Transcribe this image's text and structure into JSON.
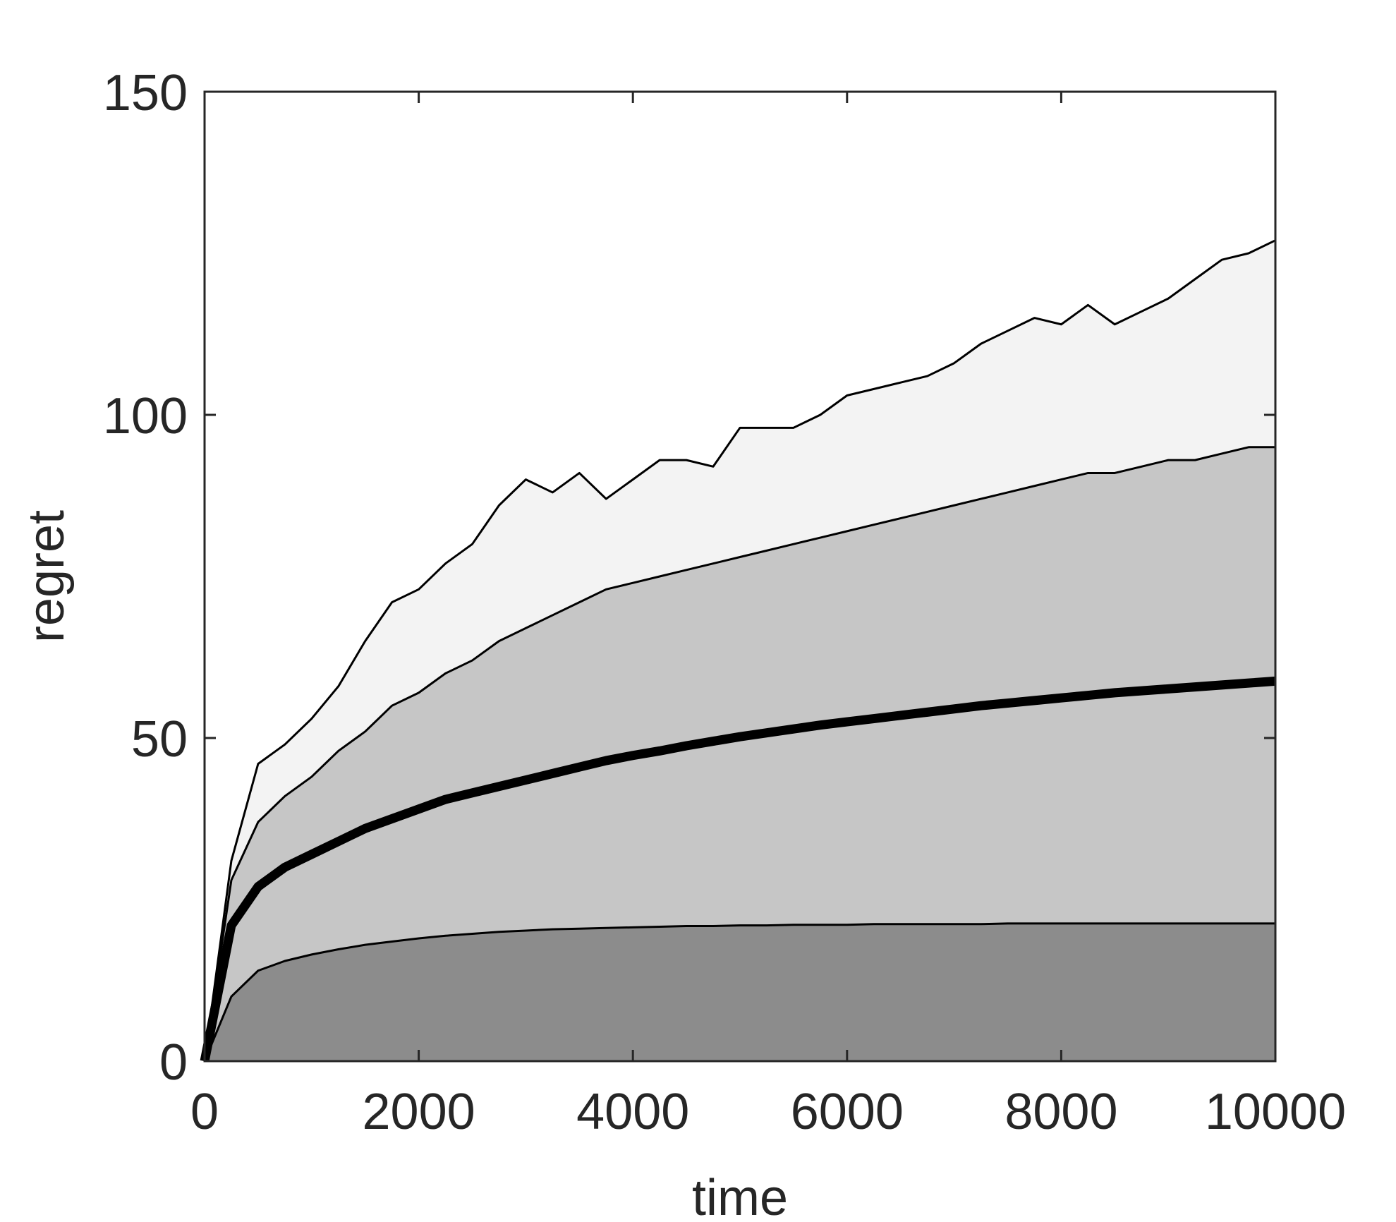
{
  "chart_data": {
    "type": "area",
    "title": "",
    "xlabel": "time",
    "ylabel": "regret",
    "xlim": [
      0,
      10000
    ],
    "ylim": [
      0,
      150
    ],
    "xticks": [
      0,
      2000,
      4000,
      6000,
      8000,
      10000
    ],
    "yticks": [
      0,
      50,
      100,
      150
    ],
    "grid": false,
    "legend": "none",
    "x": [
      0,
      250,
      500,
      750,
      1000,
      1250,
      1500,
      1750,
      2000,
      2250,
      2500,
      2750,
      3000,
      3250,
      3500,
      3750,
      4000,
      4250,
      4500,
      4750,
      5000,
      5250,
      5500,
      5750,
      6000,
      6250,
      6500,
      6750,
      7000,
      7250,
      7500,
      7750,
      8000,
      8250,
      8500,
      8750,
      9000,
      9250,
      9500,
      9750,
      10000
    ],
    "series": [
      {
        "values": [
          0,
          31,
          46,
          49,
          53,
          58,
          65,
          71,
          73,
          77,
          80,
          86,
          90,
          88,
          91,
          87,
          90,
          93,
          93,
          92,
          98,
          98,
          98,
          100,
          103,
          104,
          105,
          106,
          108,
          111,
          113,
          115,
          114,
          117,
          114,
          116,
          118,
          121,
          124,
          125,
          127
        ],
        "color": "#f3f3f3",
        "line_color": "#000000"
      },
      {
        "values": [
          0,
          28,
          37,
          41,
          44,
          48,
          51,
          55,
          57,
          60,
          62,
          65,
          67,
          69,
          71,
          73,
          74,
          75,
          76,
          77,
          78,
          79,
          80,
          81,
          82,
          83,
          84,
          85,
          86,
          87,
          88,
          89,
          90,
          91,
          91,
          92,
          93,
          93,
          94,
          95,
          95
        ],
        "color": "#c6c6c6",
        "line_color": "#000000"
      },
      {
        "values": [
          0,
          21,
          27,
          30,
          32,
          34,
          36,
          37.5,
          39,
          40.5,
          41.5,
          42.5,
          43.5,
          44.5,
          45.5,
          46.5,
          47.3,
          48,
          48.8,
          49.5,
          50.2,
          50.8,
          51.4,
          52,
          52.5,
          53,
          53.5,
          54,
          54.5,
          55,
          55.4,
          55.8,
          56.2,
          56.6,
          57,
          57.3,
          57.6,
          57.9,
          58.2,
          58.5,
          58.8
        ],
        "color": "#000000",
        "line_color": "#000000",
        "bold": true
      },
      {
        "values": [
          0,
          10,
          14,
          15.5,
          16.5,
          17.3,
          18,
          18.5,
          19,
          19.4,
          19.7,
          20,
          20.2,
          20.4,
          20.5,
          20.6,
          20.7,
          20.8,
          20.9,
          20.9,
          21,
          21,
          21.1,
          21.1,
          21.1,
          21.2,
          21.2,
          21.2,
          21.2,
          21.2,
          21.3,
          21.3,
          21.3,
          21.3,
          21.3,
          21.3,
          21.3,
          21.3,
          21.3,
          21.3,
          21.3
        ],
        "color": "#8c8c8c",
        "line_color": "#000000"
      }
    ]
  }
}
